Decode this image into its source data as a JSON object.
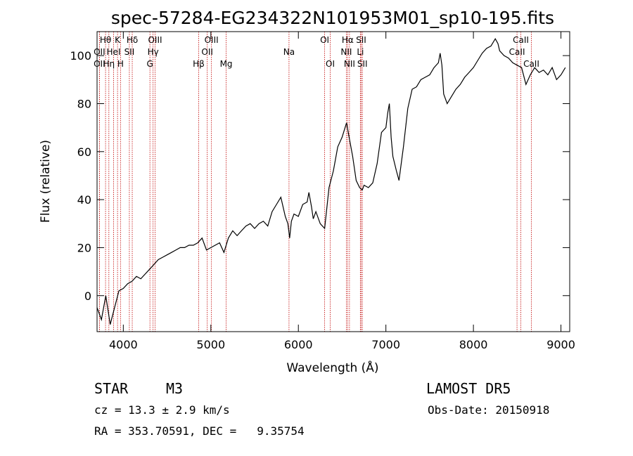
{
  "chart_data": {
    "type": "line",
    "title": "spec-57284-EG234322N101953M01_sp10-195.fits",
    "xlabel": "Wavelength (Å)",
    "ylabel": "Flux (relative)",
    "xlim": [
      3700,
      9100
    ],
    "ylim": [
      -15,
      110
    ],
    "xticks": [
      4000,
      5000,
      6000,
      7000,
      8000,
      9000
    ],
    "yticks": [
      0,
      20,
      40,
      60,
      80,
      100
    ],
    "grid": false,
    "line_color": "#000000",
    "marker_color": "#c00000",
    "spectrum": {
      "x": [
        3700,
        3750,
        3800,
        3850,
        3900,
        3950,
        4000,
        4050,
        4100,
        4150,
        4200,
        4250,
        4300,
        4350,
        4400,
        4450,
        4500,
        4550,
        4600,
        4650,
        4700,
        4750,
        4800,
        4850,
        4900,
        4950,
        5000,
        5050,
        5100,
        5150,
        5200,
        5250,
        5300,
        5350,
        5400,
        5450,
        5500,
        5550,
        5600,
        5650,
        5700,
        5750,
        5800,
        5850,
        5880,
        5900,
        5920,
        5950,
        6000,
        6050,
        6100,
        6120,
        6150,
        6170,
        6200,
        6250,
        6300,
        6350,
        6400,
        6450,
        6500,
        6550,
        6580,
        6620,
        6660,
        6700,
        6730,
        6750,
        6800,
        6850,
        6900,
        6950,
        7000,
        7020,
        7040,
        7060,
        7080,
        7100,
        7120,
        7150,
        7200,
        7250,
        7300,
        7350,
        7400,
        7450,
        7500,
        7550,
        7600,
        7620,
        7640,
        7660,
        7700,
        7750,
        7800,
        7850,
        7900,
        7950,
        8000,
        8050,
        8100,
        8150,
        8200,
        8250,
        8280,
        8300,
        8350,
        8400,
        8450,
        8500,
        8550,
        8600,
        8650,
        8700,
        8750,
        8800,
        8850,
        8900,
        8950,
        9000,
        9050
      ],
      "y": [
        -5,
        -10,
        0,
        -12,
        -5,
        2,
        3,
        5,
        6,
        8,
        7,
        9,
        11,
        13,
        15,
        16,
        17,
        18,
        19,
        20,
        20,
        21,
        21,
        22,
        24,
        19,
        20,
        21,
        22,
        18,
        24,
        27,
        25,
        27,
        29,
        30,
        28,
        30,
        31,
        29,
        35,
        38,
        41,
        33,
        30,
        24,
        31,
        34,
        33,
        38,
        39,
        43,
        37,
        32,
        35,
        30,
        28,
        45,
        52,
        62,
        66,
        72,
        66,
        58,
        48,
        45,
        44,
        46,
        45,
        47,
        55,
        68,
        70,
        76,
        80,
        66,
        58,
        55,
        52,
        48,
        62,
        78,
        86,
        87,
        90,
        91,
        92,
        95,
        97,
        101,
        96,
        84,
        80,
        83,
        86,
        88,
        91,
        93,
        95,
        98,
        101,
        103,
        104,
        107,
        105,
        102,
        100,
        99,
        97,
        96,
        95,
        88,
        92,
        95,
        93,
        94,
        92,
        95,
        90,
        92,
        95
      ]
    },
    "lines": [
      {
        "label": "Hθ",
        "x": 3797,
        "row": 1
      },
      {
        "label": "K",
        "x": 3934,
        "row": 1
      },
      {
        "label": "Hδ",
        "x": 4102,
        "row": 1
      },
      {
        "label": "OIII",
        "x": 4363,
        "row": 1
      },
      {
        "label": "OIII",
        "x": 5007,
        "row": 1
      },
      {
        "label": "OI",
        "x": 6300,
        "row": 1
      },
      {
        "label": "Hα",
        "x": 6563,
        "row": 1
      },
      {
        "label": "SII",
        "x": 6717,
        "row": 1
      },
      {
        "label": "CaII",
        "x": 8542,
        "row": 1
      },
      {
        "label": "OII",
        "x": 3727,
        "row": 2
      },
      {
        "label": "HeI",
        "x": 3889,
        "row": 2
      },
      {
        "label": "SII",
        "x": 4069,
        "row": 2
      },
      {
        "label": "Hγ",
        "x": 4340,
        "row": 2
      },
      {
        "label": "OII",
        "x": 4959,
        "row": 2
      },
      {
        "label": "Na",
        "x": 5893,
        "row": 2
      },
      {
        "label": "NII",
        "x": 6548,
        "row": 2
      },
      {
        "label": "Li",
        "x": 6708,
        "row": 2
      },
      {
        "label": "CaII",
        "x": 8498,
        "row": 2
      },
      {
        "label": "OII",
        "x": 3727,
        "row": 3
      },
      {
        "label": "Hη",
        "x": 3835,
        "row": 3
      },
      {
        "label": "H",
        "x": 3968,
        "row": 3
      },
      {
        "label": "G",
        "x": 4304,
        "row": 3
      },
      {
        "label": "Hβ",
        "x": 4861,
        "row": 3
      },
      {
        "label": "Mg",
        "x": 5175,
        "row": 3
      },
      {
        "label": "OI",
        "x": 6364,
        "row": 3
      },
      {
        "label": "NII",
        "x": 6584,
        "row": 3
      },
      {
        "label": "SII",
        "x": 6731,
        "row": 3
      },
      {
        "label": "CaII",
        "x": 8662,
        "row": 3
      }
    ]
  },
  "info": {
    "object_class": "STAR",
    "subclass": "M3",
    "survey": "LAMOST DR5",
    "cz": "cz = 13.3 ± 2.9 km/s",
    "obs_date": "Obs-Date: 20150918",
    "coords": "RA = 353.70591, DEC =   9.35754"
  }
}
